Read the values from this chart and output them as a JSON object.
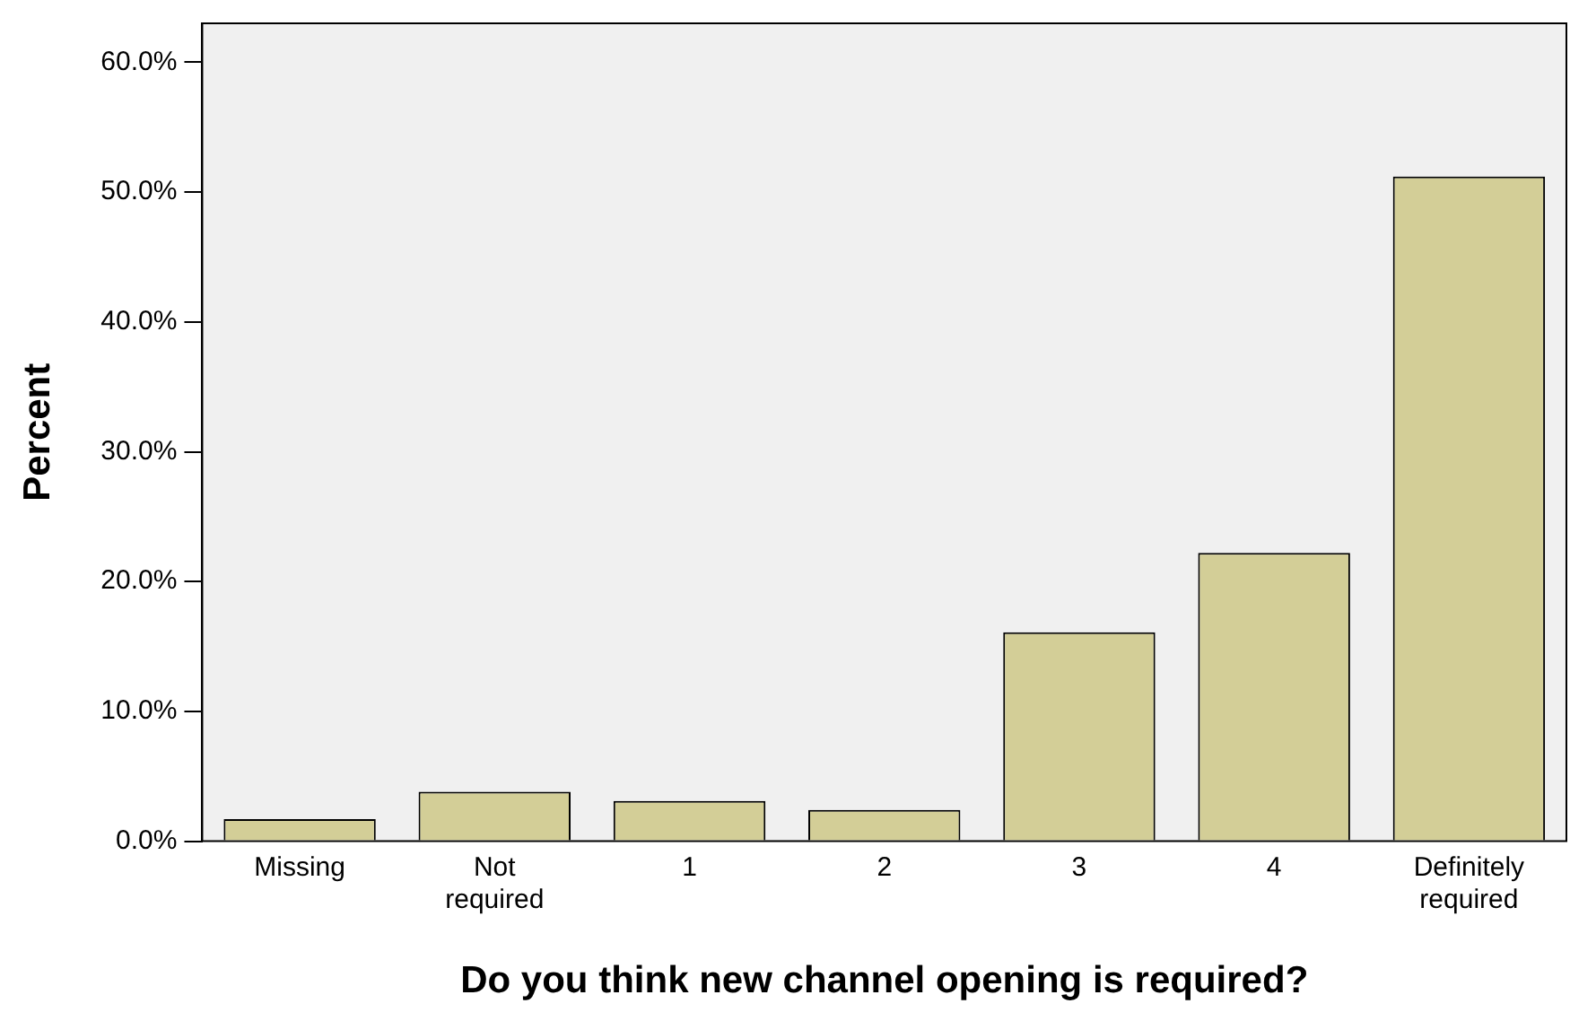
{
  "chart_data": {
    "type": "bar",
    "xlabel": "Do you think new channel opening is required?",
    "ylabel": "Percent",
    "categories": [
      "Missing",
      "Not required",
      "1",
      "2",
      "3",
      "4",
      "Definitely required"
    ],
    "values": [
      1.7,
      3.8,
      3.1,
      2.4,
      16.1,
      22.2,
      51.2
    ],
    "color": "#d3ce97",
    "ylim": [
      0,
      63
    ],
    "yticks": [
      {
        "value": 0,
        "label": "0.0%"
      },
      {
        "value": 10,
        "label": "10.0%"
      },
      {
        "value": 20,
        "label": "20.0%"
      },
      {
        "value": 30,
        "label": "30.0%"
      },
      {
        "value": 40,
        "label": "40.0%"
      },
      {
        "value": 50,
        "label": "50.0%"
      },
      {
        "value": 60,
        "label": "60.0%"
      }
    ],
    "grid": false,
    "legend": false
  }
}
